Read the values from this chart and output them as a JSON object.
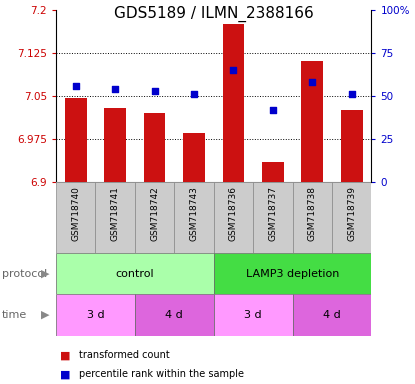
{
  "title": "GDS5189 / ILMN_2388166",
  "samples": [
    "GSM718740",
    "GSM718741",
    "GSM718742",
    "GSM718743",
    "GSM718736",
    "GSM718737",
    "GSM718738",
    "GSM718739"
  ],
  "red_values": [
    7.046,
    7.03,
    7.02,
    6.985,
    7.175,
    6.935,
    7.11,
    7.025
  ],
  "blue_values": [
    56,
    54,
    53,
    51,
    65,
    42,
    58,
    51
  ],
  "ylim_left": [
    6.9,
    7.2
  ],
  "ylim_right": [
    0,
    100
  ],
  "yticks_left": [
    6.9,
    6.975,
    7.05,
    7.125,
    7.2
  ],
  "ytick_labels_left": [
    "6.9",
    "6.975",
    "7.05",
    "7.125",
    "7.2"
  ],
  "yticks_right": [
    0,
    25,
    50,
    75,
    100
  ],
  "ytick_labels_right": [
    "0",
    "25",
    "50",
    "75",
    "100%"
  ],
  "bar_color": "#CC1111",
  "square_color": "#0000CC",
  "bar_bottom": 6.9,
  "protocol_labels": [
    "control",
    "LAMP3 depletion"
  ],
  "protocol_colors": [
    "#AAFFAA",
    "#44DD44"
  ],
  "time_groups": [
    {
      "label": "3 d",
      "start": 0,
      "end": 2,
      "color": "#FF99FF"
    },
    {
      "label": "4 d",
      "start": 2,
      "end": 4,
      "color": "#DD66DD"
    },
    {
      "label": "3 d",
      "start": 4,
      "end": 6,
      "color": "#FF99FF"
    },
    {
      "label": "4 d",
      "start": 6,
      "end": 8,
      "color": "#DD66DD"
    }
  ],
  "legend_red": "transformed count",
  "legend_blue": "percentile rank within the sample",
  "xlabel_protocol": "protocol",
  "xlabel_time": "time",
  "gridlines": [
    6.975,
    7.05,
    7.125
  ],
  "title_fontsize": 11,
  "axis_label_color_left": "#CC0000",
  "axis_label_color_right": "#0000CC",
  "sample_box_color": "#CCCCCC",
  "sample_box_edge": "#888888"
}
